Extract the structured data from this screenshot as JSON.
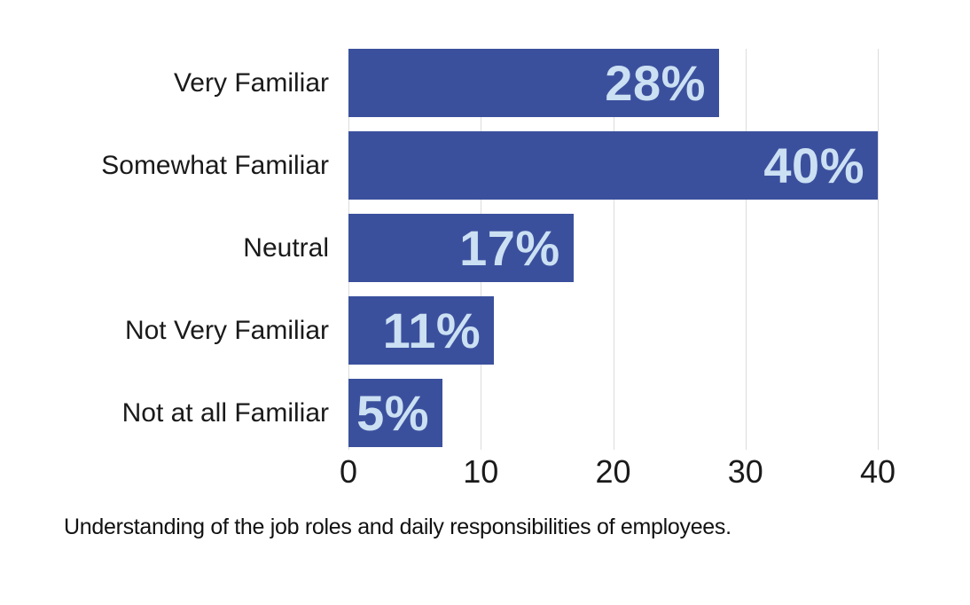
{
  "chart_data": {
    "type": "bar",
    "orientation": "horizontal",
    "title": "",
    "caption": "Understanding of the job roles and daily responsibilities of employees.",
    "categories": [
      "Very Familiar",
      "Somewhat Familiar",
      "Neutral",
      "Not Very Familiar",
      "Not at all Familiar"
    ],
    "values": [
      28,
      40,
      17,
      11,
      5
    ],
    "value_labels": [
      "28%",
      "40%",
      "17%",
      "11%",
      "5%"
    ],
    "xticks": [
      0,
      10,
      20,
      30,
      40
    ],
    "xlim": [
      0,
      40
    ],
    "grid": "vertical-gridlines",
    "legend": "none"
  },
  "colors": {
    "bar": "#3b509d",
    "value_text": "#cbe0f2",
    "label_text": "#1a1a1a",
    "tick_text": "#1a1a1a",
    "gridline": "#dcdcdc",
    "background": "#ffffff"
  }
}
